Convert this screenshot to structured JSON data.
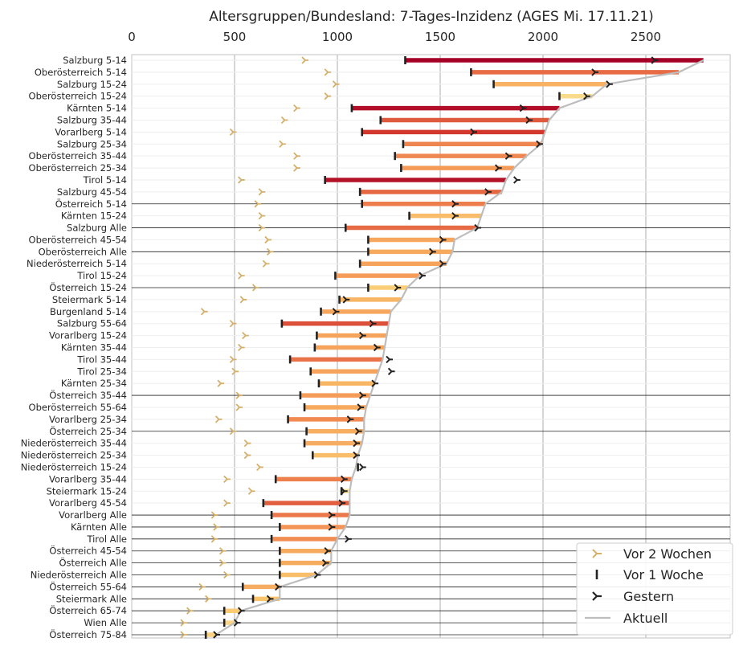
{
  "chart_data": {
    "type": "dumbbell",
    "title": "Altersgruppen/Bundesland: 7-Tages-Inzidenz (AGES Mi. 17.11.21)",
    "xlim": [
      0,
      2900
    ],
    "x_ticks": [
      "0",
      "500",
      "1000",
      "1500",
      "2000",
      "2500"
    ],
    "x_axis_position": "top",
    "grid": true,
    "legend": {
      "position": "bottom-right",
      "entries": [
        "Vor 2 Wochen",
        "Vor 1 Woche",
        "Gestern",
        "Aktuell"
      ]
    },
    "colors": {
      "two_weeks": "#d4b06a",
      "one_week": "#222222",
      "yesterday": "#222222",
      "current_line": "#bdbdbd",
      "bar_low": "#f9e79f",
      "bar_high": "#a50026"
    },
    "series_fields": [
      "category",
      "two_weeks_ago",
      "one_week_ago",
      "yesterday",
      "current"
    ],
    "rows": [
      [
        "Salzburg 5-14",
        840,
        1330,
        2540,
        2780
      ],
      [
        "Oberösterreich 5-14",
        950,
        1650,
        2250,
        2660
      ],
      [
        "Salzburg 15-24",
        990,
        1760,
        2320,
        2310
      ],
      [
        "Oberösterreich 15-24",
        950,
        2080,
        2210,
        2240
      ],
      [
        "Kärnten 5-14",
        800,
        1070,
        1900,
        2080
      ],
      [
        "Salzburg 35-44",
        740,
        1210,
        1930,
        2030
      ],
      [
        "Vorarlberg 5-14",
        490,
        1120,
        1660,
        2010
      ],
      [
        "Salzburg 25-34",
        730,
        1320,
        1980,
        1990
      ],
      [
        "Oberösterreich 35-44",
        800,
        1280,
        1830,
        1920
      ],
      [
        "Oberösterreich 25-34",
        800,
        1310,
        1780,
        1860
      ],
      [
        "Tirol 5-14",
        530,
        940,
        1870,
        1820
      ],
      [
        "Salzburg 45-54",
        630,
        1110,
        1730,
        1800
      ],
      [
        "Österreich 5-14",
        610,
        1120,
        1570,
        1720
      ],
      [
        "Kärnten 15-24",
        630,
        1350,
        1570,
        1700
      ],
      [
        "Salzburg Alle",
        630,
        1040,
        1680,
        1680
      ],
      [
        "Oberösterreich 45-54",
        660,
        1150,
        1510,
        1570
      ],
      [
        "Oberösterreich Alle",
        670,
        1150,
        1460,
        1560
      ],
      [
        "Niederösterreich 5-14",
        650,
        1110,
        1510,
        1530
      ],
      [
        "Tirol 15-24",
        530,
        990,
        1410,
        1400
      ],
      [
        "Österreich 15-24",
        600,
        1150,
        1290,
        1340
      ],
      [
        "Steiermark 5-14",
        540,
        1010,
        1040,
        1310
      ],
      [
        "Burgenland 5-14",
        350,
        920,
        990,
        1260
      ],
      [
        "Salzburg 55-64",
        490,
        730,
        1170,
        1250
      ],
      [
        "Vorarlberg 15-24",
        550,
        900,
        1120,
        1240
      ],
      [
        "Kärnten 35-44",
        530,
        890,
        1190,
        1230
      ],
      [
        "Tirol 35-44",
        490,
        770,
        1250,
        1220
      ],
      [
        "Tirol 25-34",
        500,
        870,
        1260,
        1200
      ],
      [
        "Kärnten 25-34",
        430,
        910,
        1180,
        1180
      ],
      [
        "Österreich 35-44",
        520,
        820,
        1120,
        1160
      ],
      [
        "Oberösterreich 55-64",
        520,
        840,
        1110,
        1140
      ],
      [
        "Vorarlberg 25-34",
        420,
        760,
        1060,
        1130
      ],
      [
        "Österreich 25-34",
        490,
        850,
        1100,
        1130
      ],
      [
        "Niederösterreich 35-44",
        560,
        840,
        1090,
        1120
      ],
      [
        "Niederösterreich 25-34",
        560,
        880,
        1090,
        1100
      ],
      [
        "Niederösterreich 15-24",
        620,
        1100,
        1120,
        1090
      ],
      [
        "Vorarlberg 35-44",
        460,
        700,
        1030,
        1070
      ],
      [
        "Steiermark 15-24",
        580,
        1020,
        1030,
        1060
      ],
      [
        "Vorarlberg 45-54",
        460,
        640,
        1020,
        1060
      ],
      [
        "Vorarlberg Alle",
        400,
        680,
        970,
        1060
      ],
      [
        "Kärnten Alle",
        410,
        720,
        970,
        1040
      ],
      [
        "Tirol Alle",
        400,
        680,
        1050,
        1000
      ],
      [
        "Österreich 45-54",
        440,
        720,
        950,
        970
      ],
      [
        "Österreich Alle",
        440,
        720,
        940,
        970
      ],
      [
        "Niederösterreich Alle",
        460,
        720,
        900,
        900
      ],
      [
        "Österreich 55-64",
        340,
        540,
        710,
        720
      ],
      [
        "Steiermark Alle",
        370,
        590,
        670,
        720
      ],
      [
        "Österreich 65-74",
        280,
        450,
        530,
        530
      ],
      [
        "Wien Alle",
        250,
        450,
        510,
        500
      ],
      [
        "Österreich 75-84",
        250,
        360,
        410,
        410
      ]
    ]
  }
}
